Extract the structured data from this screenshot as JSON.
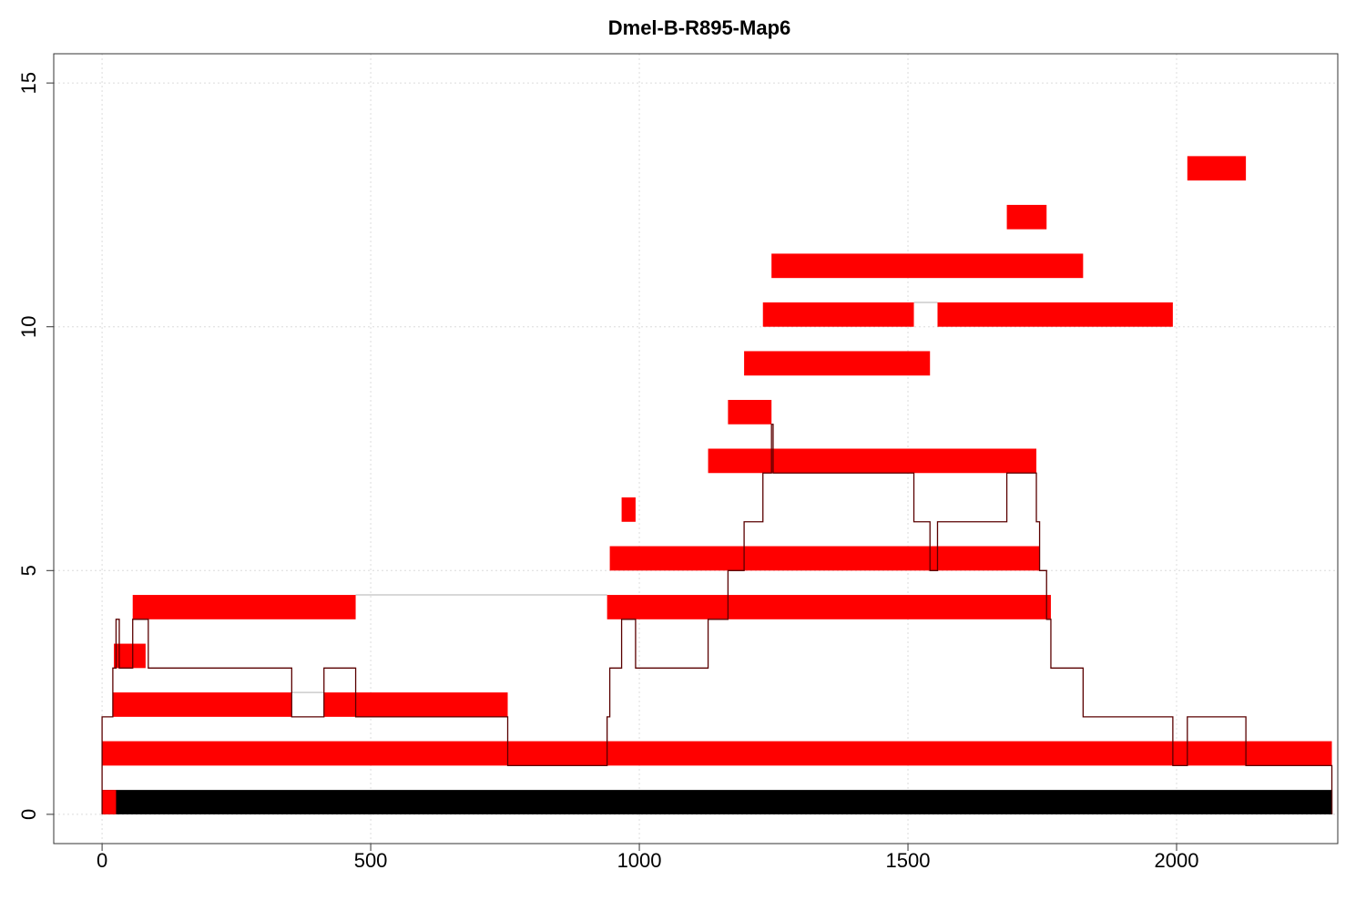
{
  "chart_data": {
    "type": "bar",
    "title": "Dmel-B-R895-Map6",
    "xlabel": "",
    "ylabel": "",
    "xlim": [
      -90,
      2300
    ],
    "ylim": [
      -0.6,
      15.6
    ],
    "x_ticks": [
      0,
      500,
      1000,
      1500,
      2000
    ],
    "x_tick_labels": [
      "0",
      "500",
      "1000",
      "1500",
      "2000"
    ],
    "y_ticks": [
      0,
      5,
      10,
      15
    ],
    "y_tick_labels": [
      "0",
      "5",
      "10",
      "15"
    ],
    "grid": true,
    "colors": {
      "segment": "#ff0000",
      "reference": "#000000",
      "coverage": "#5a0000",
      "connector": "#cccccc"
    },
    "reference_bar": {
      "start": 0,
      "end": 2290,
      "y0": 0,
      "y1": 0.5
    },
    "segments": [
      {
        "start": 0,
        "end": 26,
        "row": 1
      },
      {
        "start": 0,
        "end": 2289,
        "row": 2
      },
      {
        "start": 20,
        "end": 353,
        "row": 3
      },
      {
        "start": 413,
        "end": 755,
        "row": 3
      },
      {
        "start": 22,
        "end": 81,
        "row": 4
      },
      {
        "start": 57,
        "end": 472,
        "row": 5
      },
      {
        "start": 940,
        "end": 1766,
        "row": 5
      },
      {
        "start": 945,
        "end": 1745,
        "row": 6
      },
      {
        "start": 967,
        "end": 993,
        "row": 7
      },
      {
        "start": 1128,
        "end": 1739,
        "row": 8
      },
      {
        "start": 1165,
        "end": 1246,
        "row": 9
      },
      {
        "start": 1195,
        "end": 1541,
        "row": 10
      },
      {
        "start": 1230,
        "end": 1511,
        "row": 11
      },
      {
        "start": 1555,
        "end": 1993,
        "row": 11
      },
      {
        "start": 1246,
        "end": 1826,
        "row": 12
      },
      {
        "start": 1684,
        "end": 1758,
        "row": 13
      },
      {
        "start": 2020,
        "end": 2129,
        "row": 14
      }
    ],
    "connectors": [
      {
        "from": 353,
        "to": 413,
        "row": 3
      },
      {
        "from": 472,
        "to": 940,
        "row": 5
      },
      {
        "from": 1511,
        "to": 1555,
        "row": 11
      }
    ],
    "coverage": {
      "x": [
        0,
        20,
        22,
        26,
        32,
        57,
        81,
        86,
        353,
        413,
        472,
        755,
        940,
        945,
        967,
        993,
        1128,
        1165,
        1195,
        1230,
        1246,
        1249,
        1511,
        1541,
        1547,
        1555,
        1684,
        1739,
        1745,
        1758,
        1766,
        1826,
        1993,
        2020,
        2129,
        2289
      ],
      "y": [
        2,
        3,
        3,
        4,
        3,
        4,
        4,
        3,
        2,
        3,
        2,
        1,
        2,
        3,
        4,
        3,
        4,
        5,
        6,
        7,
        8,
        7,
        6,
        5,
        5,
        6,
        7,
        6,
        5,
        4,
        3,
        2,
        1,
        2,
        1,
        0
      ]
    }
  }
}
